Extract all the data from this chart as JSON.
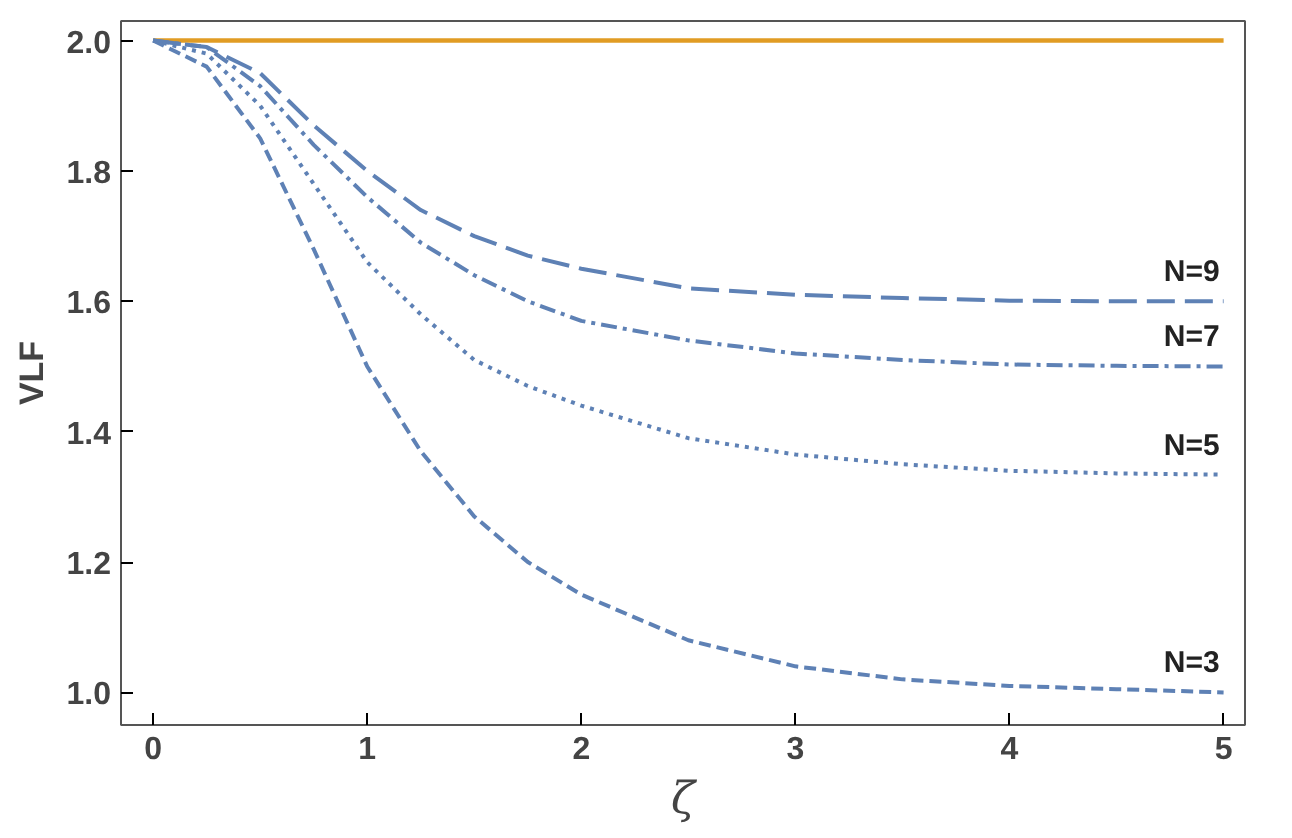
{
  "chart_data": {
    "type": "line",
    "xlabel": "ζ",
    "ylabel": "VLF",
    "xlim": [
      -0.15,
      5.1
    ],
    "ylim": [
      0.95,
      2.03
    ],
    "xticks": [
      0,
      1,
      2,
      3,
      4,
      5
    ],
    "yticks": [
      {
        "value": 1.0,
        "label": "1.0"
      },
      {
        "value": 1.2,
        "label": "1.2"
      },
      {
        "value": 1.4,
        "label": "1.4"
      },
      {
        "value": 1.6,
        "label": "1.6"
      },
      {
        "value": 1.8,
        "label": "1.8"
      },
      {
        "value": 2.0,
        "label": "2.0"
      }
    ],
    "x": [
      0,
      0.25,
      0.5,
      0.75,
      1,
      1.25,
      1.5,
      1.75,
      2,
      2.5,
      3,
      3.5,
      4,
      4.5,
      5
    ],
    "grid": false,
    "series": [
      {
        "color": "#e19c24",
        "line_style": "solid",
        "values": [
          2.0,
          2.0,
          2.0,
          2.0,
          2.0,
          2.0,
          2.0,
          2.0,
          2.0,
          2.0,
          2.0,
          2.0,
          2.0,
          2.0,
          2.0
        ]
      },
      {
        "name": "N=9",
        "color": "#5e81b5",
        "line_style": "longdash",
        "values": [
          2.0,
          1.99,
          1.95,
          1.87,
          1.8,
          1.74,
          1.7,
          1.67,
          1.65,
          1.62,
          1.61,
          1.605,
          1.601,
          1.6,
          1.6
        ]
      },
      {
        "name": "N=7",
        "color": "#5e81b5",
        "line_style": "dashdot",
        "values": [
          2.0,
          1.99,
          1.93,
          1.84,
          1.76,
          1.69,
          1.64,
          1.6,
          1.57,
          1.54,
          1.52,
          1.51,
          1.503,
          1.501,
          1.5
        ]
      },
      {
        "name": "N=5",
        "color": "#5e81b5",
        "line_style": "dotted",
        "values": [
          2.0,
          1.98,
          1.9,
          1.78,
          1.66,
          1.58,
          1.51,
          1.47,
          1.44,
          1.39,
          1.365,
          1.35,
          1.34,
          1.336,
          1.334
        ]
      },
      {
        "name": "N=3",
        "color": "#5e81b5",
        "line_style": "dashed",
        "values": [
          2.0,
          1.96,
          1.85,
          1.68,
          1.5,
          1.37,
          1.27,
          1.2,
          1.15,
          1.08,
          1.04,
          1.02,
          1.01,
          1.005,
          1.0
        ]
      }
    ]
  }
}
